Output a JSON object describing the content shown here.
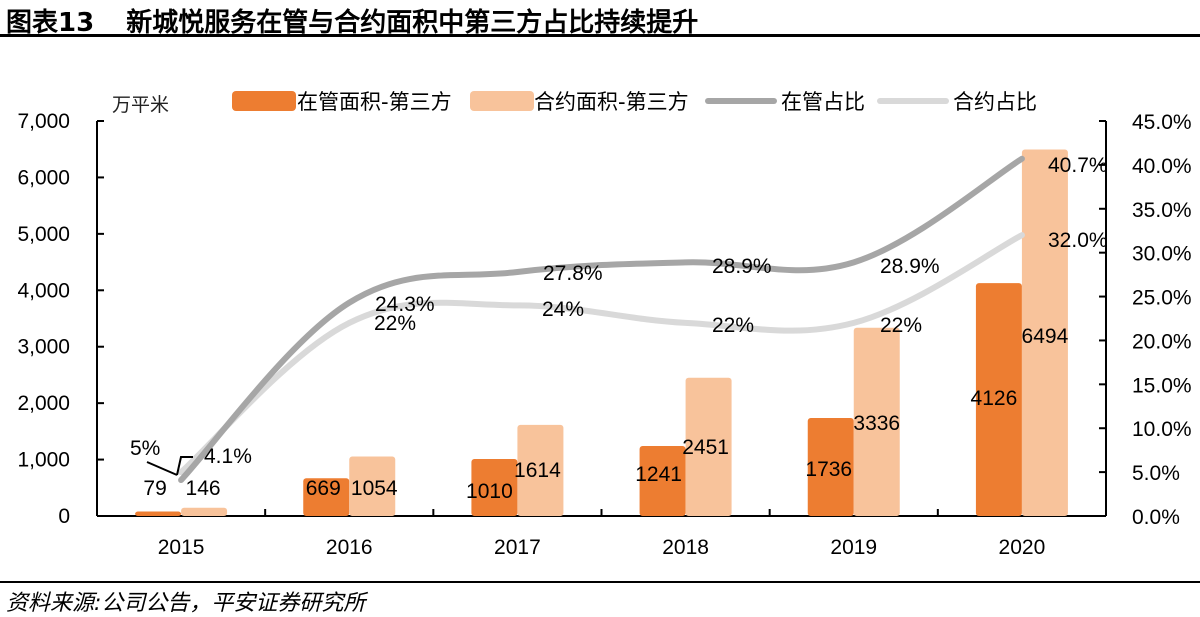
{
  "header": {
    "figure_number": "图表13",
    "title": "新城悦服务在管与合约面积中第三方占比持续提升"
  },
  "footer": {
    "source": "资料来源:公司公告，平安证券研究所"
  },
  "chart_data": {
    "type": "bar",
    "title": "新城悦服务在管与合约面积中第三方占比持续提升",
    "categories": [
      "2015",
      "2016",
      "2017",
      "2018",
      "2019",
      "2020"
    ],
    "left_axis": {
      "unit_label": "万平米",
      "range": [
        0,
        7000
      ],
      "ticks": [
        "0",
        "1,000",
        "2,000",
        "3,000",
        "4,000",
        "5,000",
        "6,000",
        "7,000"
      ],
      "tick_values": [
        0,
        1000,
        2000,
        3000,
        4000,
        5000,
        6000,
        7000
      ]
    },
    "right_axis": {
      "range": [
        0,
        45
      ],
      "ticks": [
        "0.0%",
        "5.0%",
        "10.0%",
        "15.0%",
        "20.0%",
        "25.0%",
        "30.0%",
        "35.0%",
        "40.0%",
        "45.0%"
      ],
      "tick_values": [
        0,
        5,
        10,
        15,
        20,
        25,
        30,
        35,
        40,
        45
      ]
    },
    "series": [
      {
        "name": "在管面积-第三方",
        "type": "bar",
        "axis": "left",
        "color": "#ED7D31",
        "values": [
          79,
          669,
          1010,
          1241,
          1736,
          4126
        ],
        "labels": [
          "79",
          "669",
          "1010",
          "1241",
          "1736",
          "4126"
        ]
      },
      {
        "name": "合约面积-第三方",
        "type": "bar",
        "axis": "left",
        "color": "#F8C39B",
        "values": [
          146,
          1054,
          1614,
          2451,
          3336,
          6494
        ],
        "labels": [
          "146",
          "1054",
          "1614",
          "2451",
          "3336",
          "6494"
        ]
      },
      {
        "name": "在管占比",
        "type": "line",
        "axis": "right",
        "color": "#A6A6A6",
        "values": [
          4.1,
          24.3,
          27.8,
          28.9,
          28.9,
          40.7
        ],
        "labels": [
          "4.1%",
          "24.3%",
          "27.8%",
          "28.9%",
          "28.9%",
          "40.7%"
        ]
      },
      {
        "name": "合约占比",
        "type": "line",
        "axis": "right",
        "color": "#D9D9D9",
        "values": [
          5,
          22,
          24,
          22,
          22,
          32.0
        ],
        "labels": [
          "5%",
          "22%",
          "24%",
          "22%",
          "22%",
          "32.0%"
        ]
      }
    ],
    "legend": [
      "在管面积-第三方",
      "合约面积-第三方",
      "在管占比",
      "合约占比"
    ],
    "legend_position": "top",
    "grid": false
  }
}
